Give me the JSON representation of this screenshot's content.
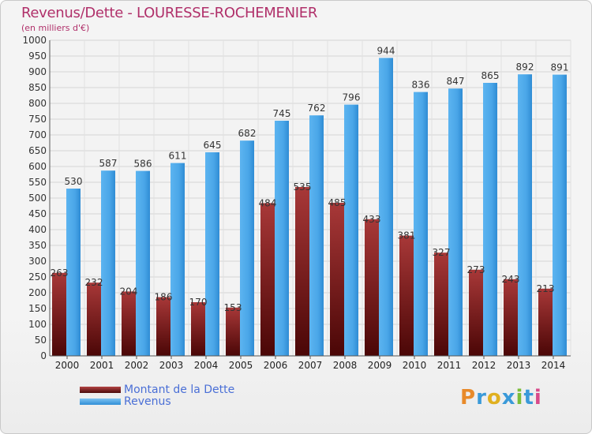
{
  "header": {
    "title": "Revenus/Dette - LOURESSE-ROCHEMENIER",
    "subtitle": "(en milliers d'€)"
  },
  "chart_data": {
    "type": "bar",
    "title": "Revenus/Dette - LOURESSE-ROCHEMENIER",
    "ylabel": "(en milliers d'€)",
    "xlabel": "",
    "categories": [
      "2000",
      "2001",
      "2002",
      "2003",
      "2004",
      "2005",
      "2006",
      "2007",
      "2008",
      "2009",
      "2010",
      "2011",
      "2012",
      "2013",
      "2014"
    ],
    "series": [
      {
        "name": "Montant de la Dette",
        "values": [
          263,
          232,
          204,
          186,
          170,
          153,
          484,
          535,
          485,
          433,
          381,
          327,
          273,
          243,
          213
        ],
        "color": "#7a1a1a"
      },
      {
        "name": "Revenus",
        "values": [
          530,
          587,
          586,
          611,
          645,
          682,
          745,
          762,
          796,
          944,
          836,
          847,
          865,
          892,
          891
        ],
        "color": "#4aa6e8"
      }
    ],
    "ylim": [
      0,
      1000
    ],
    "yticks": [
      0,
      50,
      100,
      150,
      200,
      250,
      300,
      350,
      400,
      450,
      500,
      550,
      600,
      650,
      700,
      750,
      800,
      850,
      900,
      950,
      1000
    ],
    "grid": true,
    "legend": "bottom-left"
  },
  "legend": {
    "items": [
      {
        "label": "Montant de la Dette"
      },
      {
        "label": "Revenus"
      }
    ]
  },
  "logo": {
    "letters": [
      "P",
      "r",
      "o",
      "x",
      "i",
      "t",
      "i"
    ],
    "colors": [
      "#e88a2a",
      "#3a9ad9",
      "#e0b020",
      "#3a9ad9",
      "#7bbd3a",
      "#3a9ad9",
      "#d84a8a"
    ]
  }
}
